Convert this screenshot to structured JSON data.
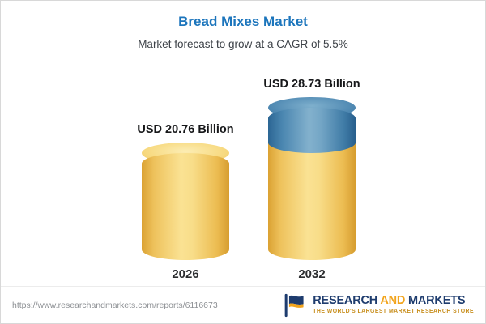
{
  "title": "Bread Mixes Market",
  "subtitle": "Market forecast to grow at a CAGR of 5.5%",
  "chart_data": {
    "type": "bar",
    "variant": "stacked-cylinder",
    "categories": [
      "2026",
      "2032"
    ],
    "values": [
      20.76,
      28.73
    ],
    "value_labels": [
      "USD 20.76 Billion",
      "USD 28.73 Billion"
    ],
    "series": [
      {
        "name": "base-market-value",
        "values": [
          20.76,
          20.76
        ],
        "color": "#f2cc6a"
      },
      {
        "name": "forecast-growth",
        "values": [
          0,
          7.97
        ],
        "color": "#3d7fac"
      }
    ],
    "unit": "USD Billion",
    "cagr_percent": 5.5,
    "title": "Bread Mixes Market",
    "subtitle": "Market forecast to grow at a CAGR of 5.5%",
    "xlabel": "",
    "ylabel": "",
    "ylim": [
      0,
      30
    ],
    "grid": false,
    "legend": false,
    "notes": "2032 cylinder shows growth segment in blue stacked on yellow base equal to 2026 value"
  },
  "colors": {
    "title_blue": "#1c75bc",
    "subtitle_gray": "#3d4248",
    "cylinder_yellow": "#f2cc6a",
    "cylinder_blue": "#3d7fac",
    "logo_navy": "#1e3c6e",
    "logo_gold": "#f2a41c"
  },
  "footer": {
    "url": "https://www.researchandmarkets.com/reports/6116673",
    "logo": {
      "word1": "RESEARCH",
      "word2": "AND",
      "word3": "MARKETS",
      "tagline": "THE WORLD'S LARGEST MARKET RESEARCH STORE"
    }
  }
}
